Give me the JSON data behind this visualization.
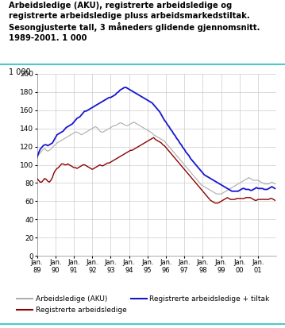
{
  "title_line1": "Arbeidsledige (AKU), registrerte arbeidsledige og",
  "title_line2": "registrerte arbeidsledige pluss arbeidsmarkedstiltak.",
  "title_line3": "Sesongjusterte tall, 3 måneders glidende gjennomsnitt.",
  "title_line4": "1989-2001. 1 000",
  "unit_label": "1 000",
  "ylim": [
    0,
    200
  ],
  "ytick_labels": [
    "0",
    "40",
    "60",
    "80",
    "100",
    "120",
    "140",
    "160",
    "180",
    "200"
  ],
  "color_aku": "#b0b0b0",
  "color_reg": "#8b0000",
  "color_tiltak": "#1515d0",
  "legend_aku": "Arbeidsledige (AKU)",
  "legend_reg": "Registrerte arbeidsledige",
  "legend_tiltak": "Registrerte arbeidsledige + tiltak",
  "xtick_years": [
    1989,
    1990,
    1991,
    1992,
    1993,
    1994,
    1995,
    1996,
    1997,
    1998,
    1999,
    2000,
    2001
  ],
  "xtick_labels": [
    "Jan.\n89",
    "Jan.\n90",
    "Jan.\n91",
    "Jan.\n92",
    "Jan.\n93",
    "Jan.\n94",
    "Jan.\n95",
    "Jan.\n96",
    "Jan.\n97",
    "Jan.\n98",
    "Jan.\n99",
    "Jan.\n00",
    "Jan.\n01"
  ],
  "header_line_color": "#4dc8c8",
  "footer_line_color": "#4dc8c8",
  "background_color": "#ffffff",
  "grid_color": "#cccccc",
  "aku": [
    110,
    111,
    113,
    115,
    117,
    118,
    116,
    115,
    116,
    117,
    119,
    121,
    122,
    124,
    125,
    126,
    127,
    128,
    129,
    130,
    131,
    132,
    133,
    134,
    135,
    136,
    136,
    135,
    134,
    133,
    134,
    135,
    136,
    137,
    138,
    139,
    140,
    141,
    142,
    141,
    139,
    137,
    136,
    136,
    137,
    138,
    139,
    140,
    141,
    142,
    143,
    143,
    144,
    145,
    146,
    146,
    145,
    144,
    143,
    143,
    144,
    145,
    146,
    147,
    146,
    145,
    144,
    143,
    142,
    141,
    140,
    139,
    138,
    137,
    136,
    135,
    133,
    132,
    131,
    130,
    129,
    128,
    127,
    126,
    124,
    122,
    120,
    118,
    116,
    114,
    112,
    110,
    108,
    106,
    104,
    102,
    100,
    98,
    96,
    94,
    92,
    90,
    88,
    86,
    84,
    82,
    80,
    78,
    77,
    76,
    75,
    74,
    73,
    72,
    71,
    70,
    69,
    68,
    68,
    68,
    68,
    69,
    70,
    71,
    72,
    73,
    74,
    75,
    76,
    77,
    78,
    79,
    80,
    81,
    82,
    83,
    84,
    85,
    86,
    85,
    84,
    83,
    83,
    83,
    83,
    82,
    81,
    80,
    79,
    79,
    79,
    79,
    80,
    81,
    80,
    79
  ],
  "reg": [
    85,
    83,
    81,
    81,
    83,
    85,
    84,
    82,
    81,
    83,
    86,
    91,
    94,
    96,
    97,
    99,
    101,
    101,
    100,
    100,
    101,
    100,
    99,
    98,
    97,
    97,
    96,
    97,
    98,
    99,
    100,
    100,
    99,
    98,
    97,
    96,
    95,
    96,
    97,
    98,
    99,
    100,
    99,
    99,
    100,
    101,
    102,
    102,
    103,
    104,
    105,
    106,
    107,
    108,
    109,
    110,
    111,
    112,
    113,
    114,
    115,
    116,
    116,
    117,
    118,
    119,
    120,
    121,
    122,
    123,
    124,
    125,
    126,
    127,
    128,
    129,
    130,
    128,
    127,
    126,
    125,
    124,
    122,
    121,
    119,
    117,
    115,
    113,
    111,
    109,
    107,
    105,
    103,
    101,
    99,
    97,
    95,
    93,
    91,
    89,
    87,
    85,
    83,
    81,
    79,
    77,
    75,
    73,
    71,
    69,
    67,
    65,
    63,
    61,
    60,
    59,
    58,
    58,
    58,
    59,
    60,
    61,
    62,
    63,
    64,
    63,
    62,
    62,
    62,
    62,
    63,
    63,
    63,
    63,
    63,
    63,
    64,
    64,
    64,
    64,
    63,
    62,
    61,
    61,
    62,
    62,
    62,
    62,
    62,
    62,
    62,
    62,
    63,
    63,
    62,
    61
  ],
  "tiltak": [
    108,
    113,
    117,
    119,
    121,
    122,
    122,
    121,
    122,
    123,
    124,
    127,
    130,
    133,
    134,
    135,
    136,
    137,
    139,
    141,
    142,
    143,
    144,
    145,
    147,
    149,
    151,
    152,
    153,
    155,
    157,
    159,
    159,
    160,
    161,
    162,
    163,
    164,
    165,
    166,
    167,
    168,
    169,
    170,
    171,
    172,
    173,
    174,
    174,
    175,
    176,
    177,
    179,
    180,
    182,
    183,
    184,
    185,
    185,
    184,
    183,
    182,
    181,
    180,
    179,
    178,
    177,
    176,
    175,
    174,
    173,
    172,
    171,
    170,
    169,
    168,
    166,
    164,
    162,
    160,
    158,
    155,
    152,
    149,
    147,
    144,
    142,
    139,
    137,
    134,
    132,
    129,
    127,
    124,
    122,
    119,
    117,
    114,
    112,
    110,
    107,
    105,
    103,
    101,
    99,
    97,
    95,
    93,
    91,
    89,
    88,
    87,
    86,
    85,
    84,
    83,
    82,
    81,
    80,
    79,
    78,
    77,
    76,
    75,
    74,
    73,
    72,
    71,
    71,
    71,
    71,
    71,
    72,
    73,
    74,
    74,
    73,
    73,
    73,
    72,
    72,
    73,
    74,
    75,
    74,
    74,
    74,
    74,
    73,
    73,
    73,
    74,
    75,
    76,
    75,
    74
  ]
}
